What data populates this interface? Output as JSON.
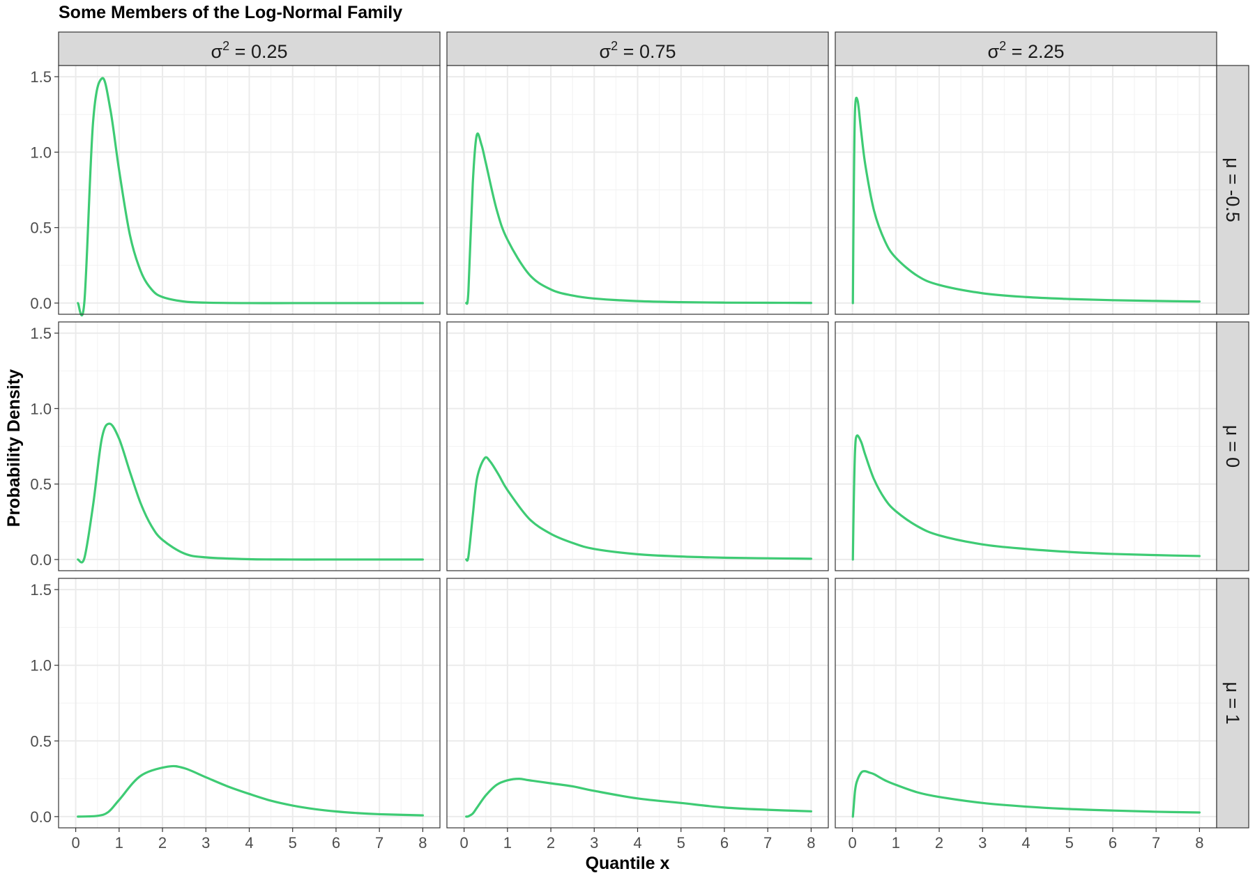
{
  "chart_data": {
    "type": "line",
    "title": "Some Members of the Log-Normal Family",
    "xlabel": "Quantile x",
    "ylabel": "Probability Density",
    "xlim": [
      0,
      8
    ],
    "ylim": [
      0,
      1.5
    ],
    "x_ticks": [
      "0",
      "1",
      "2",
      "3",
      "4",
      "5",
      "6",
      "7",
      "8"
    ],
    "y_ticks": [
      "0.0",
      "0.5",
      "1.0",
      "1.5"
    ],
    "grid": true,
    "line_color": "#3ECB74",
    "facet_columns": [
      {
        "symbol": "σ",
        "exponent": "2",
        "text": " = 0.25",
        "sigma2": 0.25
      },
      {
        "symbol": "σ",
        "exponent": "2",
        "text": " = 0.75",
        "sigma2": 0.75
      },
      {
        "symbol": "σ",
        "exponent": "2",
        "text": " = 2.25",
        "sigma2": 2.25
      }
    ],
    "facet_rows": [
      {
        "label": "μ = -0.5",
        "mu": -0.5
      },
      {
        "label": "μ = 0",
        "mu": 0
      },
      {
        "label": "μ = 1",
        "mu": 1
      }
    ],
    "series": [
      {
        "mu": -0.5,
        "sigma2": 0.25,
        "x": [
          0.05,
          0.2,
          0.4,
          0.61,
          0.8,
          1,
          1.25,
          1.5,
          1.75,
          2,
          2.5,
          3,
          4,
          5,
          6,
          7,
          8
        ],
        "y": [
          0,
          0.01,
          1.2,
          1.49,
          1.28,
          0.88,
          0.45,
          0.21,
          0.09,
          0.04,
          0.01,
          0.003,
          0,
          0,
          0,
          0,
          0
        ]
      },
      {
        "mu": -0.5,
        "sigma2": 0.75,
        "x": [
          0.05,
          0.1,
          0.2,
          0.29,
          0.4,
          0.5,
          0.75,
          1,
          1.5,
          2,
          2.5,
          3,
          4,
          5,
          6,
          7,
          8
        ],
        "y": [
          0,
          0.08,
          0.79,
          1.11,
          1.05,
          0.93,
          0.62,
          0.42,
          0.19,
          0.09,
          0.05,
          0.03,
          0.013,
          0.006,
          0.003,
          0.002,
          0.001
        ]
      },
      {
        "mu": -0.5,
        "sigma2": 2.25,
        "x": [
          0.01,
          0.03,
          0.06,
          0.12,
          0.2,
          0.3,
          0.5,
          0.75,
          1,
          1.5,
          2,
          3,
          4,
          5,
          6,
          7,
          8
        ],
        "y": [
          0,
          0.69,
          1.28,
          1.34,
          1.14,
          0.91,
          0.61,
          0.41,
          0.3,
          0.18,
          0.12,
          0.065,
          0.04,
          0.027,
          0.019,
          0.014,
          0.01
        ]
      },
      {
        "mu": 0,
        "sigma2": 0.25,
        "x": [
          0.05,
          0.2,
          0.4,
          0.6,
          0.78,
          1,
          1.25,
          1.5,
          1.75,
          2,
          2.5,
          3,
          4,
          5,
          6,
          7,
          8
        ],
        "y": [
          0,
          0.01,
          0.36,
          0.8,
          0.9,
          0.8,
          0.58,
          0.37,
          0.22,
          0.13,
          0.04,
          0.014,
          0.002,
          0,
          0,
          0,
          0
        ]
      },
      {
        "mu": 0,
        "sigma2": 0.75,
        "x": [
          0.05,
          0.1,
          0.2,
          0.3,
          0.47,
          0.6,
          0.8,
          1,
          1.5,
          2,
          2.5,
          3,
          4,
          5,
          6,
          7,
          8
        ],
        "y": [
          0,
          0.02,
          0.29,
          0.54,
          0.67,
          0.65,
          0.56,
          0.46,
          0.27,
          0.17,
          0.11,
          0.07,
          0.035,
          0.02,
          0.012,
          0.008,
          0.005
        ]
      },
      {
        "mu": 0,
        "sigma2": 2.25,
        "x": [
          0.01,
          0.03,
          0.06,
          0.1,
          0.2,
          0.3,
          0.5,
          0.75,
          1,
          1.5,
          2,
          3,
          4,
          5,
          6,
          7,
          8
        ],
        "y": [
          0,
          0.37,
          0.72,
          0.82,
          0.78,
          0.69,
          0.53,
          0.4,
          0.32,
          0.22,
          0.16,
          0.1,
          0.07,
          0.05,
          0.037,
          0.029,
          0.023
        ]
      },
      {
        "mu": 1,
        "sigma2": 0.25,
        "x": [
          0.05,
          0.5,
          0.75,
          1,
          1.5,
          2.12,
          2.5,
          3,
          3.5,
          4,
          4.5,
          5,
          5.5,
          6,
          6.5,
          7,
          8
        ],
        "y": [
          0,
          0.005,
          0.03,
          0.11,
          0.27,
          0.33,
          0.32,
          0.26,
          0.2,
          0.15,
          0.105,
          0.073,
          0.05,
          0.034,
          0.023,
          0.016,
          0.008
        ]
      },
      {
        "mu": 1,
        "sigma2": 0.75,
        "x": [
          0.05,
          0.1,
          0.2,
          0.3,
          0.5,
          0.75,
          1,
          1.27,
          1.5,
          2,
          2.5,
          3,
          4,
          5,
          6,
          7,
          8
        ],
        "y": [
          0,
          0.002,
          0.02,
          0.06,
          0.14,
          0.21,
          0.24,
          0.25,
          0.24,
          0.22,
          0.2,
          0.17,
          0.12,
          0.09,
          0.06,
          0.045,
          0.035
        ]
      },
      {
        "mu": 1,
        "sigma2": 2.25,
        "x": [
          0.01,
          0.03,
          0.06,
          0.1,
          0.2,
          0.29,
          0.4,
          0.5,
          0.75,
          1,
          1.5,
          2,
          3,
          4,
          5,
          6,
          7,
          8
        ],
        "y": [
          0,
          0.07,
          0.17,
          0.23,
          0.29,
          0.3,
          0.29,
          0.28,
          0.24,
          0.21,
          0.16,
          0.13,
          0.09,
          0.066,
          0.05,
          0.04,
          0.032,
          0.027
        ]
      }
    ]
  }
}
